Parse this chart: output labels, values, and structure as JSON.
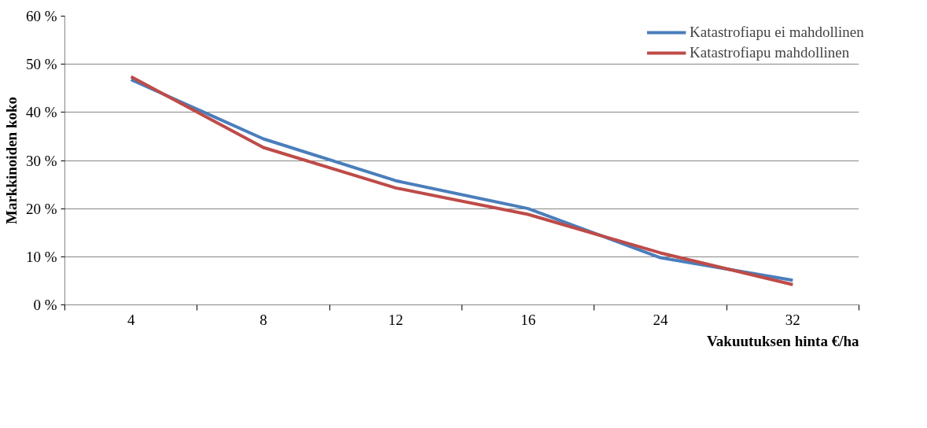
{
  "chart_data": {
    "type": "line",
    "xlabel": "Vakuutuksen hinta €/ha",
    "ylabel": "Markkinoiden koko",
    "categories": [
      "4",
      "8",
      "12",
      "16",
      "24",
      "32"
    ],
    "series": [
      {
        "name": "Katastrofiapu ei mahdollinen",
        "color": "#4a7ebb",
        "values": [
          46.8,
          34.5,
          25.8,
          20.0,
          9.8,
          5.1
        ]
      },
      {
        "name": "Katastrofiapu mahdollinen",
        "color": "#be4b48",
        "values": [
          47.4,
          32.7,
          24.3,
          18.8,
          10.8,
          4.2
        ]
      }
    ],
    "ylim": [
      0,
      60
    ],
    "yticks": [
      {
        "value": 0,
        "label": "0 %"
      },
      {
        "value": 10,
        "label": "10 %"
      },
      {
        "value": 20,
        "label": "20 %"
      },
      {
        "value": 30,
        "label": "30 %"
      },
      {
        "value": 40,
        "label": "40 %"
      },
      {
        "value": 50,
        "label": "50 %"
      },
      {
        "value": 60,
        "label": "60 %"
      }
    ],
    "grid": "y",
    "legend": "top right",
    "marker": "none",
    "line_style": "solid"
  }
}
